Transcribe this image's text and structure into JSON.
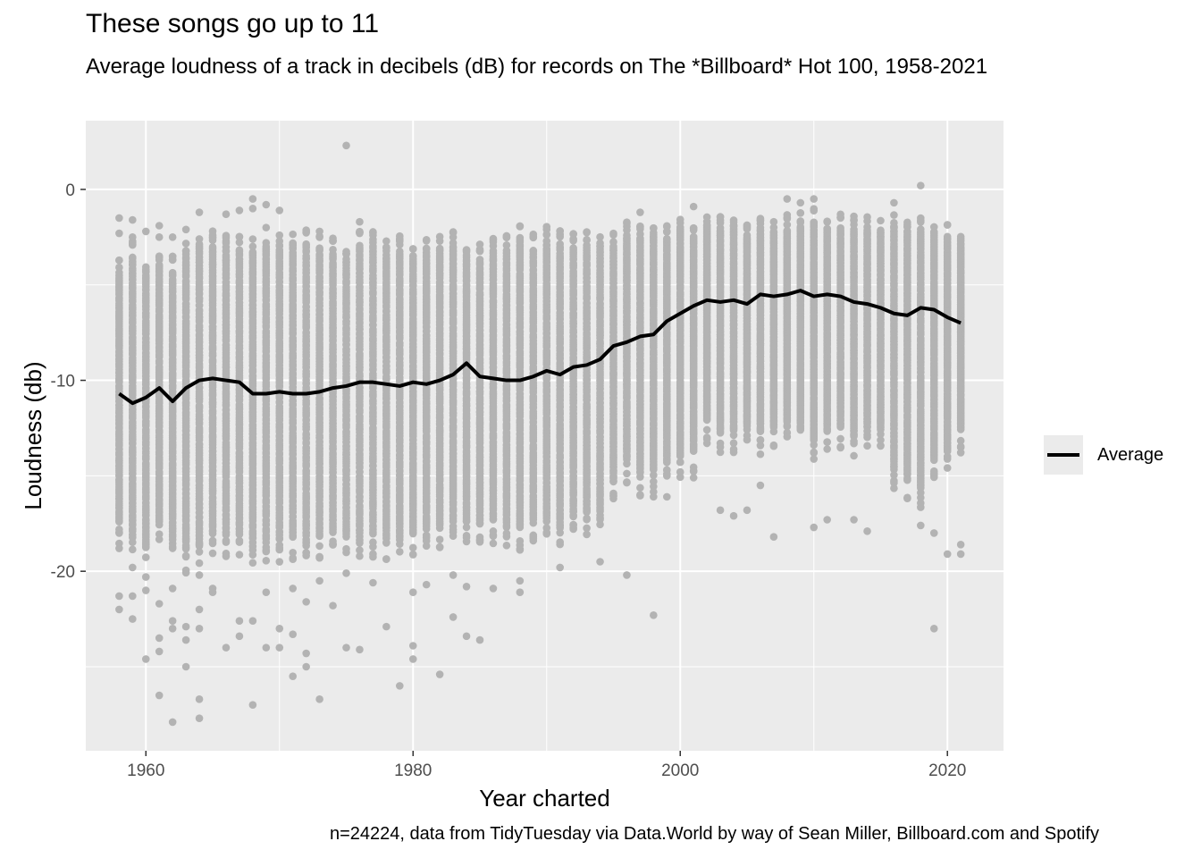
{
  "chart_data": {
    "type": "scatter",
    "title": "These songs go up to 11",
    "subtitle": "Average loudness of a track in decibels (dB) for records on The *Billboard* Hot 100, 1958-2021",
    "caption": "n=24224, data from TidyTuesday via Data.World by way of Sean Miller, Billboard.com and Spotify",
    "xlabel": "Year charted",
    "ylabel": "Loudness (db)",
    "xlim": [
      1955.5,
      2024.2
    ],
    "ylim": [
      -29.4,
      3.6
    ],
    "x_ticks": [
      1960,
      1980,
      2000,
      2020
    ],
    "x_tick_labels": [
      "1960",
      "1980",
      "2000",
      "2020"
    ],
    "y_ticks": [
      0,
      -10,
      -20
    ],
    "y_tick_labels": [
      "0",
      "-10",
      "-20"
    ],
    "grid": true,
    "legend_position": "right",
    "colors": {
      "points": "#b3b3b3",
      "line": "#000000",
      "panel": "#ebebeb",
      "grid": "#ffffff"
    },
    "series": [
      {
        "name": "Average",
        "type": "line",
        "x": [
          1958,
          1959,
          1960,
          1961,
          1962,
          1963,
          1964,
          1965,
          1966,
          1967,
          1968,
          1969,
          1970,
          1971,
          1972,
          1973,
          1974,
          1975,
          1976,
          1977,
          1978,
          1979,
          1980,
          1981,
          1982,
          1983,
          1984,
          1985,
          1986,
          1987,
          1988,
          1989,
          1990,
          1991,
          1992,
          1993,
          1994,
          1995,
          1996,
          1997,
          1998,
          1999,
          2000,
          2001,
          2002,
          2003,
          2004,
          2005,
          2006,
          2007,
          2008,
          2009,
          2010,
          2011,
          2012,
          2013,
          2014,
          2015,
          2016,
          2017,
          2018,
          2019,
          2020,
          2021
        ],
        "y": [
          -10.7,
          -11.2,
          -10.9,
          -10.4,
          -11.1,
          -10.4,
          -10.0,
          -9.9,
          -10.0,
          -10.1,
          -10.7,
          -10.7,
          -10.6,
          -10.7,
          -10.7,
          -10.6,
          -10.4,
          -10.3,
          -10.1,
          -10.1,
          -10.2,
          -10.3,
          -10.1,
          -10.2,
          -10.0,
          -9.7,
          -9.1,
          -9.8,
          -9.9,
          -10.0,
          -10.0,
          -9.8,
          -9.5,
          -9.7,
          -9.3,
          -9.2,
          -8.9,
          -8.2,
          -8.0,
          -7.7,
          -7.6,
          -6.9,
          -6.5,
          -6.1,
          -5.8,
          -5.9,
          -5.8,
          -6.0,
          -5.5,
          -5.6,
          -5.5,
          -5.3,
          -5.6,
          -5.5,
          -5.6,
          -5.9,
          -6.0,
          -6.2,
          -6.5,
          -6.6,
          -6.2,
          -6.3,
          -6.7,
          -7.0
        ]
      },
      {
        "name": "",
        "type": "scatter",
        "band": {
          "x": [
            1958,
            1959,
            1960,
            1961,
            1962,
            1963,
            1964,
            1965,
            1966,
            1967,
            1968,
            1969,
            1970,
            1971,
            1972,
            1973,
            1974,
            1975,
            1976,
            1977,
            1978,
            1979,
            1980,
            1981,
            1982,
            1983,
            1984,
            1985,
            1986,
            1987,
            1988,
            1989,
            1990,
            1991,
            1992,
            1993,
            1994,
            1995,
            1996,
            1997,
            1998,
            1999,
            2000,
            2001,
            2002,
            2003,
            2004,
            2005,
            2006,
            2007,
            2008,
            2009,
            2010,
            2011,
            2012,
            2013,
            2014,
            2015,
            2016,
            2017,
            2018,
            2019,
            2020,
            2021
          ],
          "low": [
            -17.5,
            -18.0,
            -18.6,
            -17.4,
            -18.2,
            -18.9,
            -18.6,
            -18.0,
            -18.2,
            -18.0,
            -18.5,
            -18.5,
            -18.4,
            -18.2,
            -18.6,
            -18.2,
            -18.0,
            -18.0,
            -18.2,
            -18.1,
            -18.3,
            -18.2,
            -18.0,
            -17.8,
            -17.6,
            -17.4,
            -17.5,
            -17.6,
            -17.4,
            -17.6,
            -17.8,
            -17.5,
            -17.4,
            -17.7,
            -17.2,
            -17.0,
            -16.9,
            -15.4,
            -14.2,
            -14.9,
            -14.7,
            -14.3,
            -14.0,
            -13.6,
            -12.1,
            -12.7,
            -12.7,
            -12.3,
            -12.7,
            -12.4,
            -12.2,
            -12.4,
            -13.2,
            -12.6,
            -12.5,
            -12.9,
            -12.5,
            -12.6,
            -14.7,
            -15.0,
            -15.7,
            -14.2,
            -13.7,
            -12.6
          ],
          "high": [
            -4.5,
            -3.5,
            -4.4,
            -3.9,
            -4.3,
            -3.5,
            -3.1,
            -2.9,
            -3.0,
            -3.2,
            -3.4,
            -3.2,
            -3.2,
            -3.0,
            -2.9,
            -3.2,
            -3.3,
            -3.6,
            -3.0,
            -2.9,
            -3.4,
            -3.2,
            -3.6,
            -3.3,
            -3.2,
            -2.9,
            -3.5,
            -3.6,
            -3.2,
            -3.2,
            -2.7,
            -3.1,
            -2.7,
            -2.8,
            -3.0,
            -2.9,
            -3.1,
            -3.0,
            -2.4,
            -2.5,
            -2.4,
            -2.5,
            -2.1,
            -2.5,
            -2.0,
            -2.0,
            -1.9,
            -2.4,
            -2.0,
            -2.3,
            -2.1,
            -1.9,
            -1.8,
            -2.1,
            -2.0,
            -2.1,
            -2.2,
            -2.3,
            -2.0,
            -2.1,
            -2.2,
            -2.4,
            -2.6,
            -2.9
          ]
        },
        "outliers": [
          [
            1958,
            -1.5
          ],
          [
            1958,
            -2.3
          ],
          [
            1958,
            -18.8
          ],
          [
            1958,
            -21.3
          ],
          [
            1958,
            -22.0
          ],
          [
            1959,
            -1.6
          ],
          [
            1959,
            -2.5
          ],
          [
            1959,
            -19.8
          ],
          [
            1959,
            -21.3
          ],
          [
            1959,
            -22.5
          ],
          [
            1960,
            -2.2
          ],
          [
            1960,
            -20.3
          ],
          [
            1960,
            -21.0
          ],
          [
            1960,
            -24.6
          ],
          [
            1961,
            -1.9
          ],
          [
            1961,
            -2.5
          ],
          [
            1961,
            -21.7
          ],
          [
            1961,
            -23.5
          ],
          [
            1961,
            -24.2
          ],
          [
            1961,
            -26.5
          ],
          [
            1962,
            -2.5
          ],
          [
            1962,
            -20.9
          ],
          [
            1962,
            -22.6
          ],
          [
            1962,
            -23.0
          ],
          [
            1962,
            -27.9
          ],
          [
            1963,
            -2.1
          ],
          [
            1963,
            -22.9
          ],
          [
            1963,
            -23.6
          ],
          [
            1963,
            -25.0
          ],
          [
            1964,
            -1.2
          ],
          [
            1964,
            -20.2
          ],
          [
            1964,
            -22.0
          ],
          [
            1964,
            -23.0
          ],
          [
            1964,
            -26.7
          ],
          [
            1964,
            -27.7
          ],
          [
            1965,
            -2.4
          ],
          [
            1965,
            -20.9
          ],
          [
            1965,
            -21.1
          ],
          [
            1966,
            -1.3
          ],
          [
            1966,
            -24.0
          ],
          [
            1967,
            -1.1
          ],
          [
            1967,
            -22.6
          ],
          [
            1967,
            -23.4
          ],
          [
            1968,
            -0.5
          ],
          [
            1968,
            -1.0
          ],
          [
            1968,
            -22.6
          ],
          [
            1968,
            -27.0
          ],
          [
            1969,
            -0.8
          ],
          [
            1969,
            -2.0
          ],
          [
            1969,
            -21.1
          ],
          [
            1969,
            -24.0
          ],
          [
            1970,
            -1.1
          ],
          [
            1970,
            -2.4
          ],
          [
            1970,
            -23.0
          ],
          [
            1970,
            -24.0
          ],
          [
            1971,
            -2.9
          ],
          [
            1971,
            -20.9
          ],
          [
            1971,
            -23.3
          ],
          [
            1971,
            -25.5
          ],
          [
            1972,
            -21.6
          ],
          [
            1972,
            -24.3
          ],
          [
            1972,
            -25.0
          ],
          [
            1973,
            -2.2
          ],
          [
            1973,
            -20.5
          ],
          [
            1973,
            -26.7
          ],
          [
            1974,
            -2.7
          ],
          [
            1974,
            -21.8
          ],
          [
            1975,
            2.3
          ],
          [
            1975,
            -20.1
          ],
          [
            1975,
            -24.0
          ],
          [
            1976,
            -1.7
          ],
          [
            1976,
            -2.3
          ],
          [
            1976,
            -24.1
          ],
          [
            1977,
            -2.4
          ],
          [
            1977,
            -20.6
          ],
          [
            1978,
            -22.9
          ],
          [
            1979,
            -2.6
          ],
          [
            1979,
            -26.0
          ],
          [
            1980,
            -21.1
          ],
          [
            1980,
            -23.9
          ],
          [
            1980,
            -24.6
          ],
          [
            1981,
            -20.7
          ],
          [
            1982,
            -25.4
          ],
          [
            1983,
            -20.2
          ],
          [
            1983,
            -22.4
          ],
          [
            1984,
            -20.8
          ],
          [
            1984,
            -23.4
          ],
          [
            1985,
            -23.6
          ],
          [
            1986,
            -20.9
          ],
          [
            1988,
            -20.5
          ],
          [
            1988,
            -21.1
          ],
          [
            1991,
            -19.8
          ],
          [
            1994,
            -19.5
          ],
          [
            1996,
            -20.2
          ],
          [
            1997,
            -1.2
          ],
          [
            1998,
            -16.1
          ],
          [
            1998,
            -22.3
          ],
          [
            1999,
            -16.1
          ],
          [
            2001,
            -0.9
          ],
          [
            2001,
            -15.1
          ],
          [
            2003,
            -16.8
          ],
          [
            2004,
            -17.1
          ],
          [
            2005,
            -16.8
          ],
          [
            2006,
            -15.5
          ],
          [
            2007,
            -18.2
          ],
          [
            2008,
            -0.5
          ],
          [
            2009,
            -0.7
          ],
          [
            2010,
            -0.5
          ],
          [
            2010,
            -17.7
          ],
          [
            2011,
            -17.3
          ],
          [
            2013,
            -17.3
          ],
          [
            2014,
            -17.9
          ],
          [
            2016,
            -0.7
          ],
          [
            2018,
            0.2
          ],
          [
            2018,
            -17.6
          ],
          [
            2019,
            -23.0
          ],
          [
            2019,
            -18.0
          ],
          [
            2020,
            -19.1
          ],
          [
            2021,
            -18.6
          ],
          [
            2021,
            -19.1
          ]
        ]
      }
    ]
  }
}
